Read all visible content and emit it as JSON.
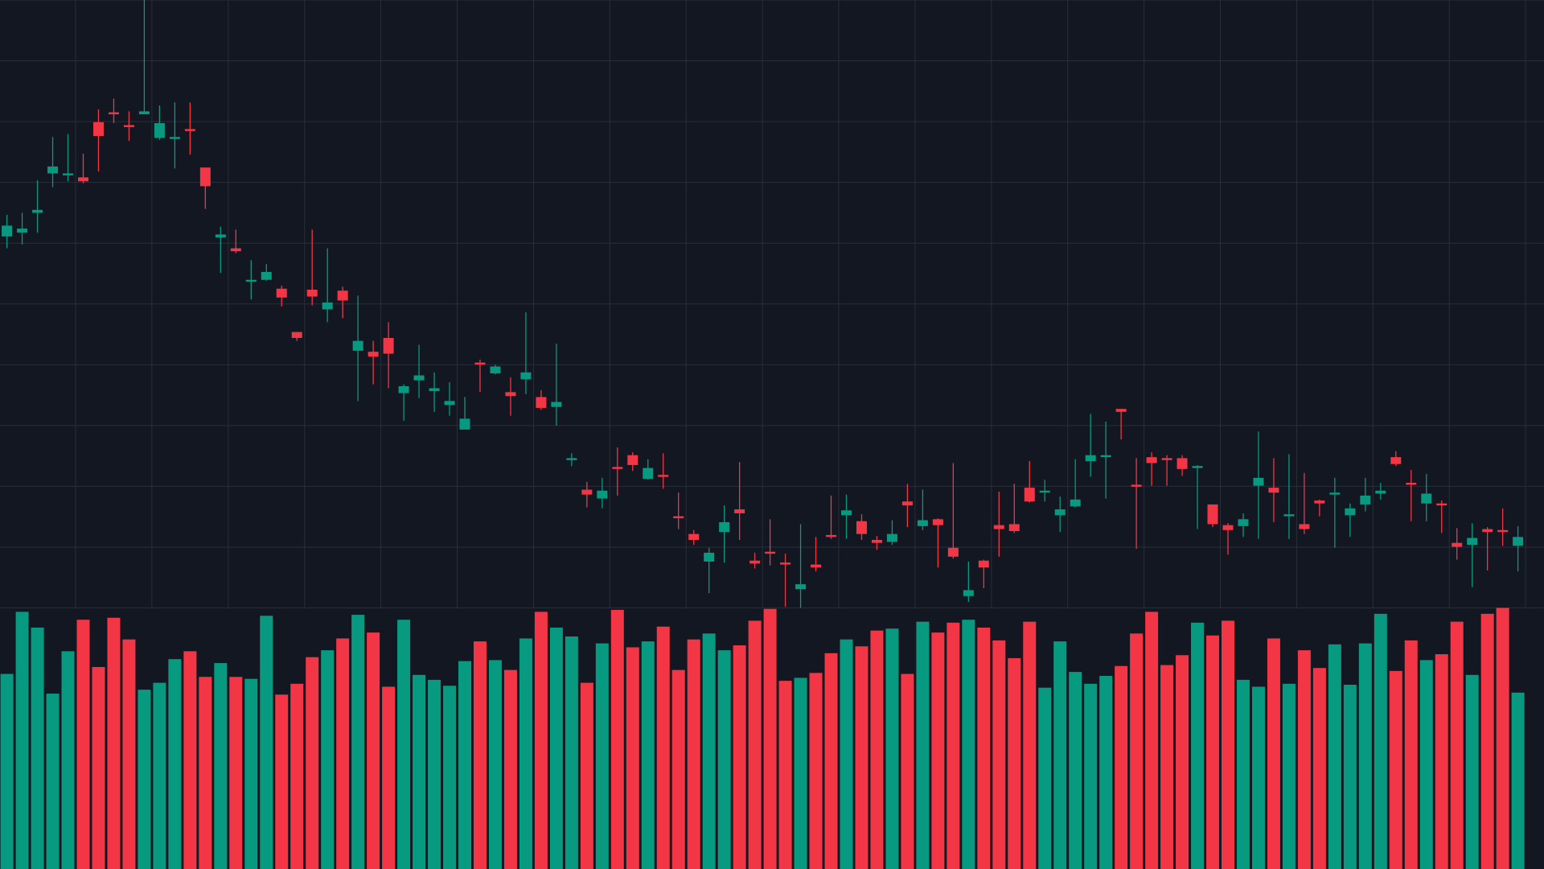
{
  "chart_data": {
    "type": "candlestick",
    "up_color": "#089981",
    "down_color": "#f23645",
    "background": "#131722",
    "grid_color": "#2a2e39",
    "grid": true,
    "ylim": [
      0,
      617
    ],
    "yticks": [
      0,
      61.7,
      123.4,
      185.1,
      246.8,
      308.5,
      370.2,
      431.9,
      493.6,
      555.3,
      617
    ],
    "volume_lim": [
      0,
      265
    ],
    "open": [
      377,
      381,
      401,
      441,
      439,
      437,
      493,
      503,
      490,
      501,
      477,
      476,
      486,
      447,
      376,
      365,
      331,
      333,
      324,
      280,
      323,
      303,
      322,
      261,
      260,
      274,
      218,
      231,
      220,
      206,
      181,
      249,
      238,
      219,
      232,
      214,
      204,
      150,
      120,
      111,
      143,
      155,
      131,
      135,
      93,
      75,
      47,
      77,
      100,
      48,
      57,
      46,
      19,
      44,
      74,
      94,
      88,
      69,
      67,
      108,
      83,
      90,
      61,
      12,
      48,
      84,
      85,
      122,
      117,
      94,
      103,
      149,
      153,
      202,
      125,
      153,
      152,
      152,
      142,
      105,
      84,
      83,
      124,
      122,
      93,
      85,
      109,
      115,
      94,
      105,
      116,
      153,
      127,
      106,
      106,
      66,
      64,
      80,
      79,
      63
    ],
    "high": [
      399,
      401,
      434,
      478,
      481,
      461,
      506,
      517,
      504,
      617,
      510,
      513,
      513,
      447,
      387,
      384,
      353,
      349,
      327,
      280,
      384,
      365,
      326,
      317,
      271,
      290,
      227,
      267,
      239,
      229,
      214,
      252,
      247,
      234,
      300,
      221,
      268,
      157,
      128,
      132,
      163,
      158,
      151,
      157,
      117,
      79,
      61,
      104,
      148,
      56,
      90,
      55,
      85,
      72,
      114,
      115,
      95,
      73,
      89,
      126,
      120,
      91,
      147,
      47,
      49,
      118,
      126,
      149,
      130,
      113,
      151,
      197,
      189,
      202,
      152,
      158,
      155,
      155,
      145,
      105,
      86,
      96,
      179,
      152,
      156,
      137,
      110,
      132,
      106,
      132,
      127,
      159,
      140,
      136,
      109,
      81,
      86,
      82,
      101,
      83
    ],
    "low": [
      365,
      369,
      381,
      427,
      433,
      431,
      443,
      492,
      474,
      501,
      475,
      446,
      460,
      405,
      340,
      360,
      313,
      332,
      306,
      271,
      307,
      290,
      294,
      210,
      227,
      223,
      190,
      213,
      199,
      195,
      181,
      219,
      237,
      195,
      217,
      201,
      185,
      144,
      102,
      101,
      114,
      139,
      130,
      121,
      80,
      64,
      15,
      46,
      69,
      40,
      43,
      1,
      0,
      37,
      70,
      70,
      69,
      59,
      64,
      82,
      79,
      41,
      50,
      6,
      20,
      52,
      76,
      107,
      108,
      77,
      102,
      133,
      111,
      171,
      60,
      124,
      124,
      134,
      80,
      82,
      54,
      72,
      70,
      87,
      70,
      75,
      93,
      61,
      72,
      98,
      110,
      144,
      88,
      88,
      76,
      49,
      21,
      38,
      63,
      37
    ],
    "close": [
      388,
      385,
      404,
      448,
      441,
      433,
      479,
      501,
      488,
      504,
      492,
      478,
      484,
      428,
      379,
      362,
      333,
      341,
      315,
      274,
      316,
      310,
      312,
      271,
      255,
      258,
      225,
      236,
      223,
      210,
      192,
      247,
      245,
      215,
      239,
      203,
      209,
      152,
      115,
      119,
      141,
      145,
      142,
      133,
      91,
      69,
      56,
      87,
      96,
      45,
      55,
      44,
      24,
      41,
      72,
      99,
      75,
      66,
      75,
      104,
      89,
      84,
      52,
      18,
      41,
      80,
      78,
      108,
      119,
      100,
      110,
      155,
      155,
      199,
      123,
      147,
      150,
      141,
      144,
      85,
      79,
      90,
      132,
      117,
      95,
      80,
      106,
      117,
      101,
      114,
      119,
      146,
      125,
      116,
      104,
      62,
      71,
      77,
      77,
      72
    ],
    "volume": [
      198,
      261,
      245,
      178,
      221,
      253,
      205,
      255,
      233,
      182,
      189,
      213,
      221,
      195,
      209,
      195,
      193,
      257,
      177,
      188,
      215,
      222,
      234,
      258,
      240,
      185,
      253,
      197,
      192,
      186,
      211,
      231,
      212,
      202,
      234,
      261,
      245,
      236,
      189,
      229,
      263,
      225,
      231,
      246,
      202,
      233,
      239,
      222,
      227,
      252,
      264,
      191,
      194,
      199,
      219,
      233,
      226,
      242,
      244,
      198,
      251,
      240,
      250,
      253,
      245,
      232,
      214,
      251,
      184,
      231,
      200,
      188,
      196,
      206,
      239,
      261,
      207,
      217,
      250,
      237,
      252,
      192,
      185,
      234,
      188,
      222,
      204,
      228,
      187,
      229,
      259,
      201,
      232,
      212,
      218,
      251,
      197,
      259,
      265,
      179
    ]
  }
}
